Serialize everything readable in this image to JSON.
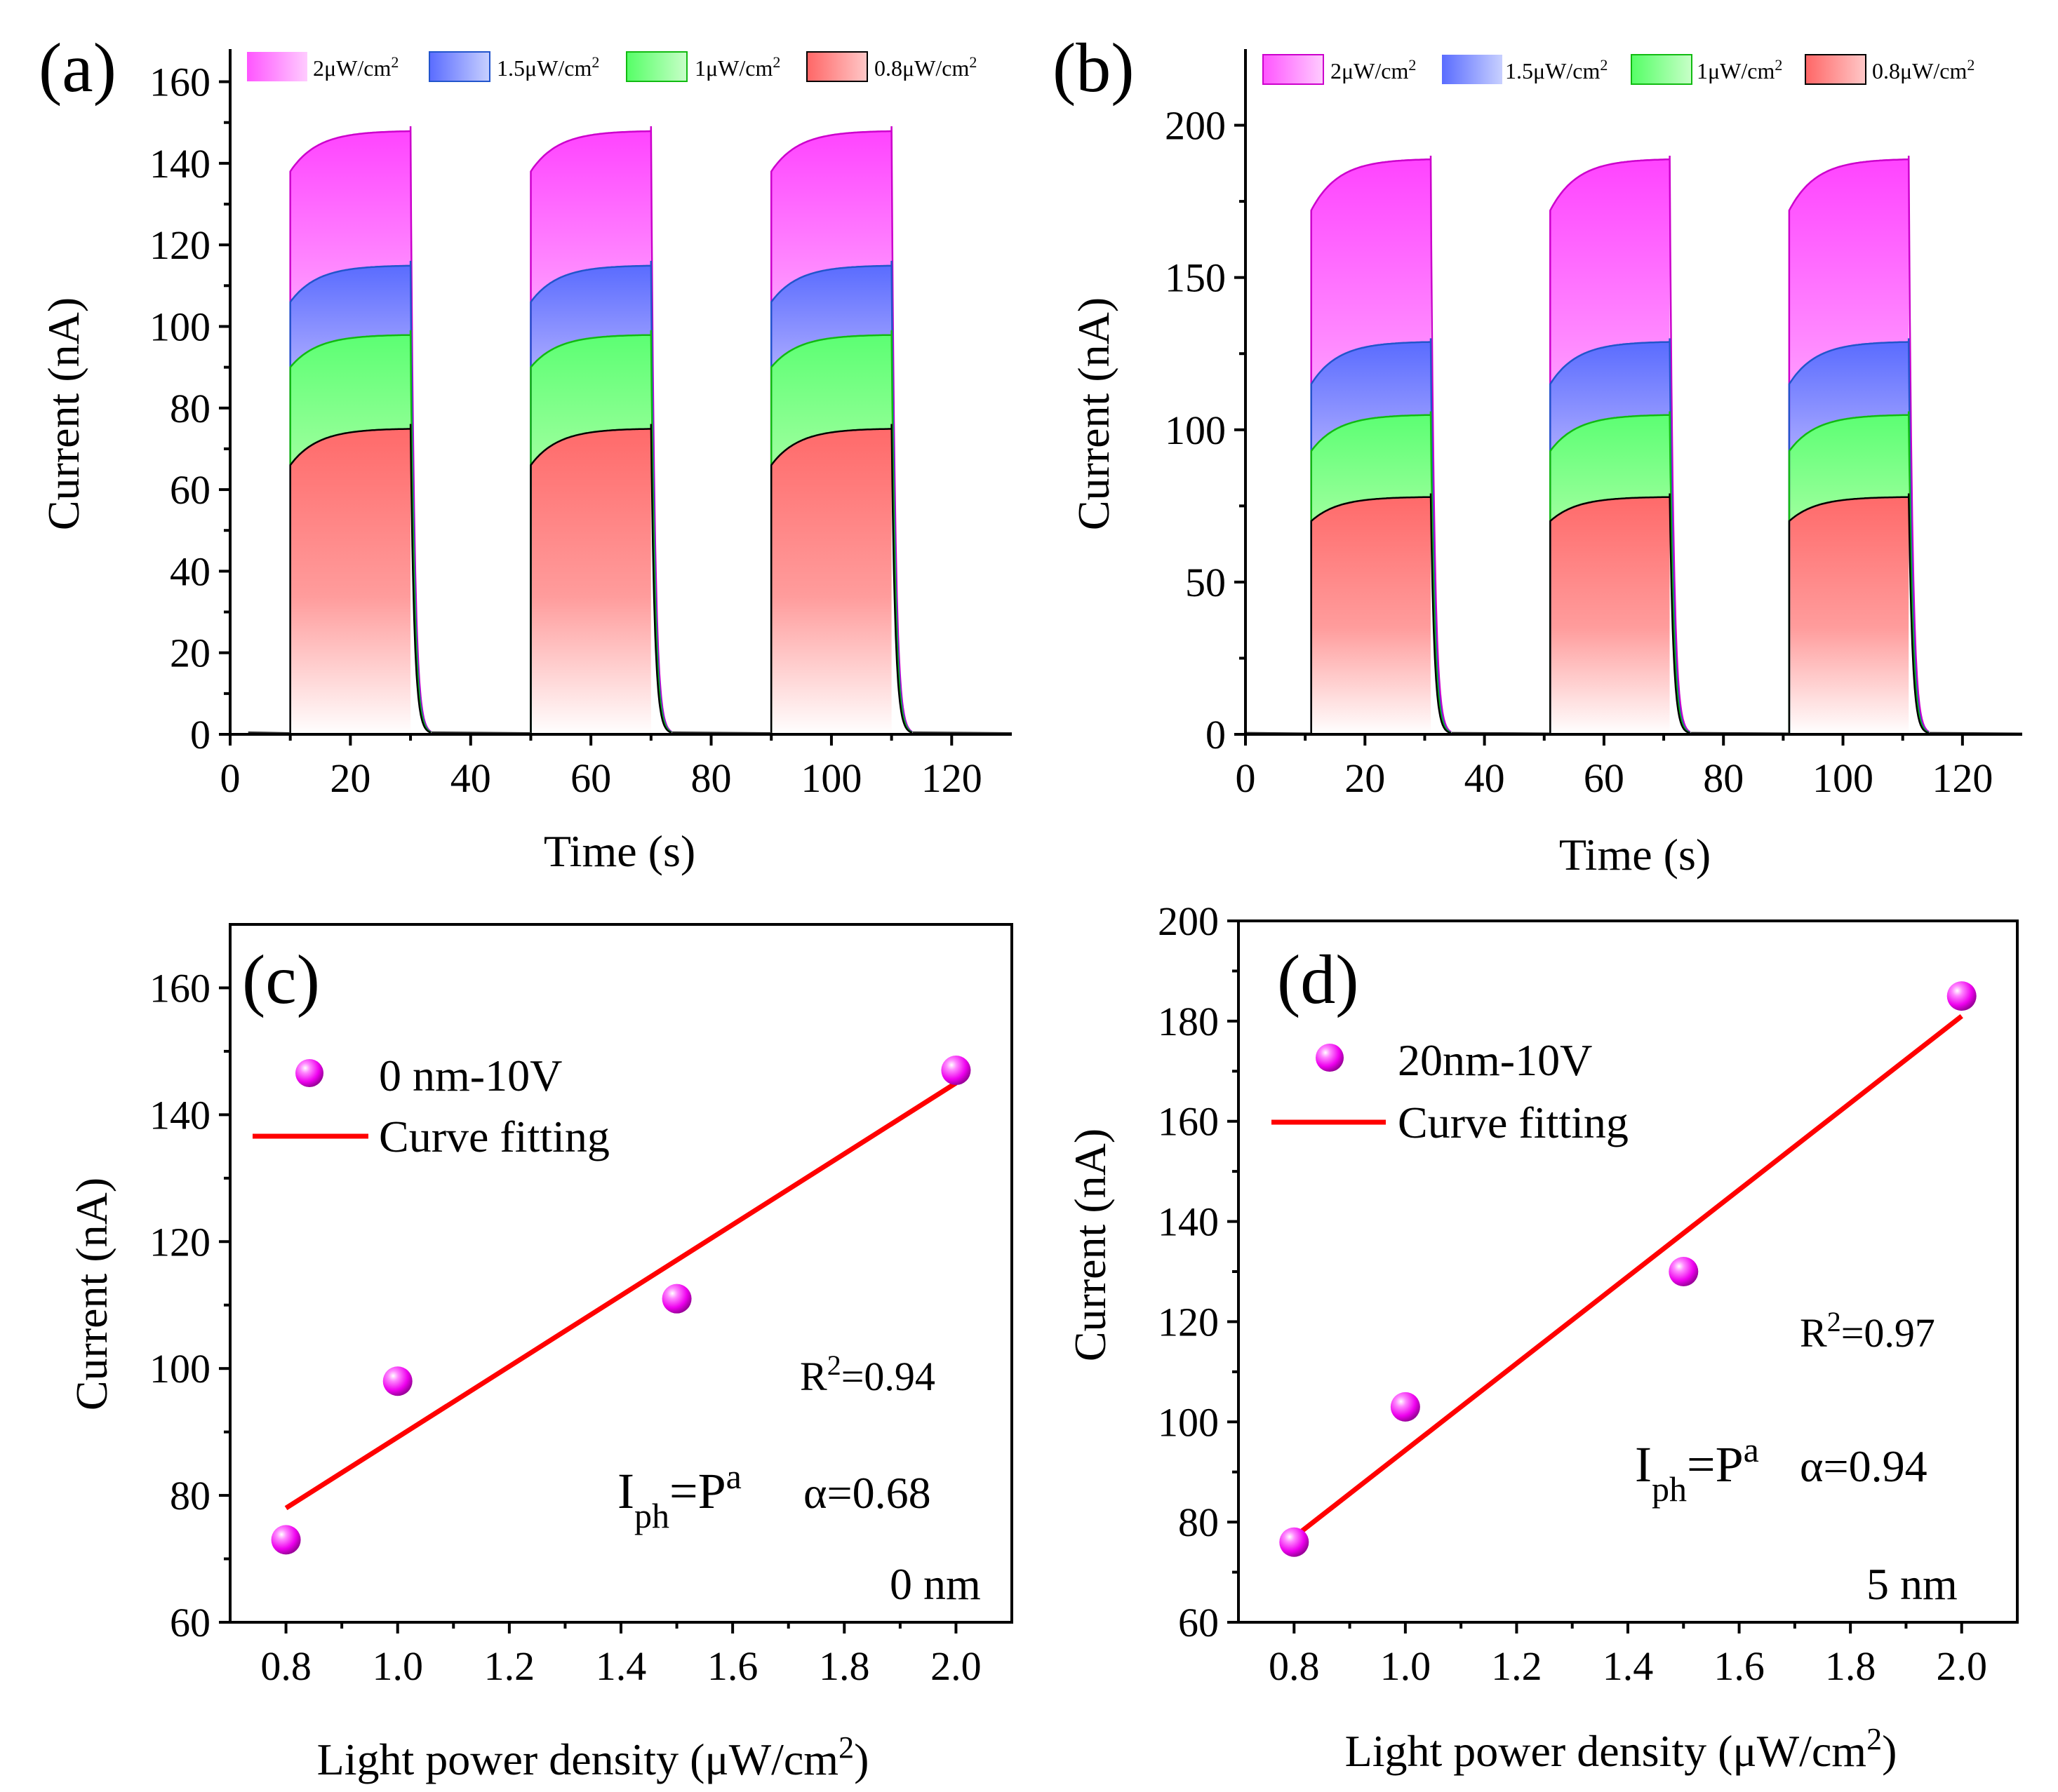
{
  "colors": {
    "p2": "#ff33ff",
    "p15": "#6677ff",
    "p1": "#33ee55",
    "p08": "#ff6666",
    "line2": "#cc00cc",
    "line15": "#2255cc",
    "line1": "#11bb11",
    "line08": "#000000",
    "fit": "#ff0000",
    "marker": "#ee22ee"
  },
  "chart_data": [
    {
      "panel": "(a)",
      "type": "area",
      "xlabel": "Time (s)",
      "ylabel": "Current (nA)",
      "xlim": [
        0,
        130
      ],
      "ylim": [
        0,
        168
      ],
      "xticks": [
        0,
        20,
        40,
        60,
        80,
        100,
        120
      ],
      "yticks": [
        0,
        20,
        40,
        60,
        80,
        100,
        120,
        140,
        160
      ],
      "pulses": [
        [
          10,
          30
        ],
        [
          50,
          70
        ],
        [
          90,
          110
        ]
      ],
      "legend": [
        {
          "label": "2μW/cm",
          "sup": "2"
        },
        {
          "label": "1.5μW/cm",
          "sup": "2"
        },
        {
          "label": "1μW/cm",
          "sup": "2"
        },
        {
          "label": "0.8μW/cm",
          "sup": "2"
        }
      ],
      "series": [
        {
          "name": "2μW/cm2",
          "rise": 138,
          "peak": 148
        },
        {
          "name": "1.5μW/cm2",
          "rise": 106,
          "peak": 115
        },
        {
          "name": "1μW/cm2",
          "rise": 90,
          "peak": 98
        },
        {
          "name": "0.8μW/cm2",
          "rise": 66,
          "peak": 75
        }
      ]
    },
    {
      "panel": "(b)",
      "type": "area",
      "xlabel": "Time (s)",
      "ylabel": "Current (nA)",
      "xlim": [
        0,
        130
      ],
      "ylim": [
        0,
        225
      ],
      "xticks": [
        0,
        20,
        40,
        60,
        80,
        100,
        120
      ],
      "yticks": [
        0,
        50,
        100,
        150,
        200
      ],
      "pulses": [
        [
          11,
          31
        ],
        [
          51,
          71
        ],
        [
          91,
          111
        ]
      ],
      "legend": [
        {
          "label": "2μW/cm",
          "sup": "2"
        },
        {
          "label": "1.5μW/cm",
          "sup": "2"
        },
        {
          "label": "1μW/cm",
          "sup": "2"
        },
        {
          "label": "0.8μW/cm",
          "sup": "2"
        }
      ],
      "series": [
        {
          "name": "2μW/cm2",
          "rise": 172,
          "peak": 189
        },
        {
          "name": "1.5μW/cm2",
          "rise": 115,
          "peak": 129
        },
        {
          "name": "1μW/cm2",
          "rise": 93,
          "peak": 105
        },
        {
          "name": "0.8μW/cm2",
          "rise": 70,
          "peak": 78
        }
      ]
    },
    {
      "panel": "(c)",
      "type": "scatter",
      "xlabel": "Light power density (μW/cm",
      "xlabel_sup": "2",
      "xlabel_end": ")",
      "ylabel": "Current (nA)",
      "xlim": [
        0.7,
        2.1
      ],
      "ylim": [
        60,
        170
      ],
      "xticks": [
        "0.8",
        "1.0",
        "1.2",
        "1.4",
        "1.6",
        "1.8",
        "2.0"
      ],
      "yticks": [
        60,
        80,
        100,
        120,
        140,
        160
      ],
      "points": {
        "x": [
          0.8,
          1.0,
          1.5,
          2.0
        ],
        "y": [
          73,
          98,
          111,
          147
        ]
      },
      "fit": {
        "x": [
          0.8,
          2.0
        ],
        "y": [
          78,
          145
        ]
      },
      "legend": [
        "0 nm-10V",
        "Curve fitting"
      ],
      "r2_base": "R",
      "r2_sup": "2",
      "r2_val": "=0.94",
      "formula_i": "I",
      "formula_sub": "ph",
      "formula_mid": "=P",
      "formula_sup": "a",
      "alpha": "α=0.68",
      "note": "0 nm"
    },
    {
      "panel": "(d)",
      "type": "scatter",
      "xlabel": "Light power density (μW/cm",
      "xlabel_sup": "2",
      "xlabel_end": ")",
      "ylabel": "Current (nA)",
      "xlim": [
        0.7,
        2.1
      ],
      "ylim": [
        60,
        200
      ],
      "xticks": [
        "0.8",
        "1.0",
        "1.2",
        "1.4",
        "1.6",
        "1.8",
        "2.0"
      ],
      "yticks": [
        60,
        80,
        100,
        120,
        140,
        160,
        180,
        200
      ],
      "points": {
        "x": [
          0.8,
          1.0,
          1.5,
          2.0
        ],
        "y": [
          76,
          103,
          130,
          185
        ]
      },
      "fit": {
        "x": [
          0.8,
          2.0
        ],
        "y": [
          77,
          181
        ]
      },
      "legend": [
        "20nm-10V",
        "Curve fitting"
      ],
      "r2_base": "R",
      "r2_sup": "2",
      "r2_val": "=0.97",
      "formula_i": "I",
      "formula_sub": "ph",
      "formula_mid": "=P",
      "formula_sup": "a",
      "alpha": "α=0.94",
      "note": "5 nm"
    }
  ]
}
